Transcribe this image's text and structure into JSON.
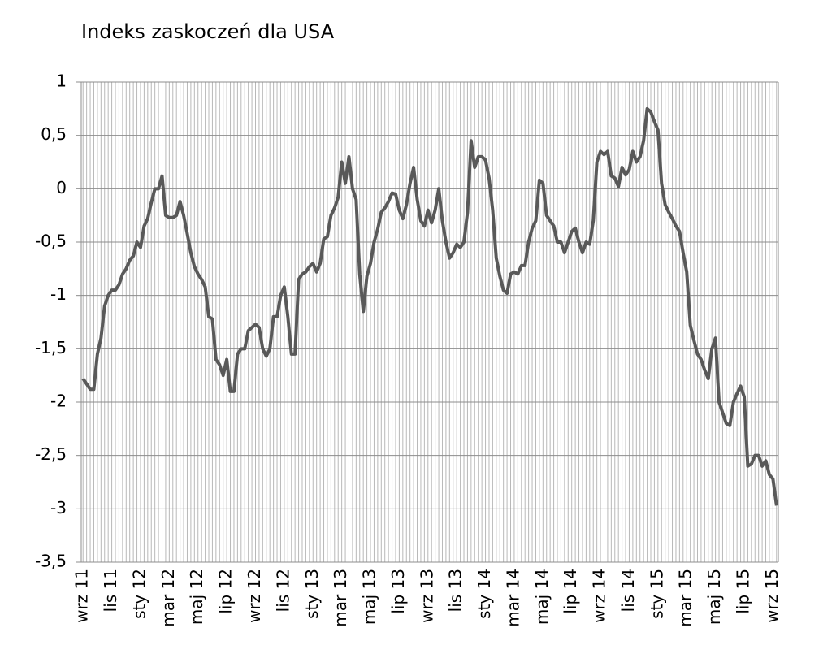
{
  "chart_data": {
    "type": "line",
    "title": "Indeks zaskoczeń dla USA",
    "categories": [
      "wrz 11",
      null,
      null,
      null,
      null,
      null,
      null,
      null,
      "lis 11",
      null,
      null,
      null,
      null,
      null,
      null,
      null,
      "sty 12",
      null,
      null,
      null,
      null,
      null,
      null,
      null,
      "mar 12",
      null,
      null,
      null,
      null,
      null,
      null,
      null,
      "maj 12",
      null,
      null,
      null,
      null,
      null,
      null,
      null,
      "lip 12",
      null,
      null,
      null,
      null,
      null,
      null,
      null,
      "wrz 12",
      null,
      null,
      null,
      null,
      null,
      null,
      null,
      "lis 12",
      null,
      null,
      null,
      null,
      null,
      null,
      null,
      "sty 13",
      null,
      null,
      null,
      null,
      null,
      null,
      null,
      "mar 13",
      null,
      null,
      null,
      null,
      null,
      null,
      null,
      "maj 13",
      null,
      null,
      null,
      null,
      null,
      null,
      null,
      "lip 13",
      null,
      null,
      null,
      null,
      null,
      null,
      null,
      "wrz 13",
      null,
      null,
      null,
      null,
      null,
      null,
      null,
      "lis 13",
      null,
      null,
      null,
      null,
      null,
      null,
      null,
      "sty 14",
      null,
      null,
      null,
      null,
      null,
      null,
      null,
      "mar 14",
      null,
      null,
      null,
      null,
      null,
      null,
      null,
      "maj 14",
      null,
      null,
      null,
      null,
      null,
      null,
      null,
      "lip 14",
      null,
      null,
      null,
      null,
      null,
      null,
      null,
      "wrz 14",
      null,
      null,
      null,
      null,
      null,
      null,
      null,
      "lis 14",
      null,
      null,
      null,
      null,
      null,
      null,
      null,
      "sty 15",
      null,
      null,
      null,
      null,
      null,
      null,
      null,
      "mar 15",
      null,
      null,
      null,
      null,
      null,
      null,
      null,
      "maj 15",
      null,
      null,
      null,
      null,
      null,
      null,
      null,
      "lip 15",
      null,
      null,
      null,
      null,
      null,
      null,
      null,
      "wrz 15",
      null
    ],
    "values": [
      -1.78,
      -1.83,
      -1.88,
      -1.88,
      -1.55,
      -1.4,
      -1.1,
      -1.0,
      -0.95,
      -0.95,
      -0.9,
      -0.8,
      -0.75,
      -0.67,
      -0.63,
      -0.5,
      -0.55,
      -0.35,
      -0.28,
      -0.13,
      0,
      0,
      0.12,
      -0.25,
      -0.27,
      -0.27,
      -0.25,
      -0.12,
      -0.25,
      -0.42,
      -0.6,
      -0.73,
      -0.8,
      -0.85,
      -0.92,
      -1.2,
      -1.22,
      -1.6,
      -1.65,
      -1.75,
      -1.6,
      -1.9,
      -1.9,
      -1.55,
      -1.5,
      -1.5,
      -1.33,
      -1.3,
      -1.27,
      -1.3,
      -1.5,
      -1.57,
      -1.5,
      -1.2,
      -1.2,
      -1.0,
      -0.92,
      -1.2,
      -1.55,
      -1.55,
      -0.85,
      -0.8,
      -0.78,
      -0.73,
      -0.7,
      -0.78,
      -0.7,
      -0.47,
      -0.45,
      -0.25,
      -0.18,
      -0.08,
      0.25,
      0.05,
      0.3,
      0.0,
      -0.1,
      -0.8,
      -1.15,
      -0.82,
      -0.7,
      -0.5,
      -0.38,
      -0.22,
      -0.18,
      -0.12,
      -0.04,
      -0.05,
      -0.2,
      -0.28,
      -0.15,
      0.05,
      0.2,
      -0.1,
      -0.3,
      -0.35,
      -0.2,
      -0.32,
      -0.2,
      0.0,
      -0.3,
      -0.5,
      -0.65,
      -0.6,
      -0.52,
      -0.55,
      -0.5,
      -0.22,
      0.45,
      0.2,
      0.3,
      0.3,
      0.27,
      0.1,
      -0.2,
      -0.65,
      -0.82,
      -0.95,
      -0.98,
      -0.8,
      -0.78,
      -0.8,
      -0.72,
      -0.72,
      -0.5,
      -0.37,
      -0.3,
      0.08,
      0.05,
      -0.25,
      -0.3,
      -0.35,
      -0.5,
      -0.5,
      -0.6,
      -0.5,
      -0.4,
      -0.37,
      -0.5,
      -0.6,
      -0.5,
      -0.52,
      -0.3,
      0.25,
      0.35,
      0.32,
      0.35,
      0.12,
      0.1,
      0.02,
      0.2,
      0.13,
      0.18,
      0.35,
      0.25,
      0.3,
      0.45,
      0.75,
      0.72,
      0.63,
      0.55,
      0.05,
      -0.15,
      -0.22,
      -0.28,
      -0.35,
      -0.4,
      -0.6,
      -0.78,
      -1.28,
      -1.42,
      -1.55,
      -1.6,
      -1.7,
      -1.78,
      -1.5,
      -1.4,
      -2.0,
      -2.1,
      -2.2,
      -2.22,
      -2.0,
      -1.92,
      -1.85,
      -1.95,
      -2.6,
      -2.58,
      -2.5,
      -2.5,
      -2.6,
      -2.55,
      -2.68,
      -2.72,
      -2.97
    ],
    "color": "#595959",
    "ylim": [
      -3.5,
      1
    ],
    "yticks": [
      1,
      {
        "value": 0.5,
        "label": "0,5"
      },
      0,
      {
        "value": -0.5,
        "label": "-0,5"
      },
      -1,
      {
        "value": -1.5,
        "label": "-1,5"
      },
      -2,
      {
        "value": -2.5,
        "label": "-2,5"
      },
      -3,
      {
        "value": -3.5,
        "label": "-3,5"
      }
    ],
    "grid": true
  }
}
